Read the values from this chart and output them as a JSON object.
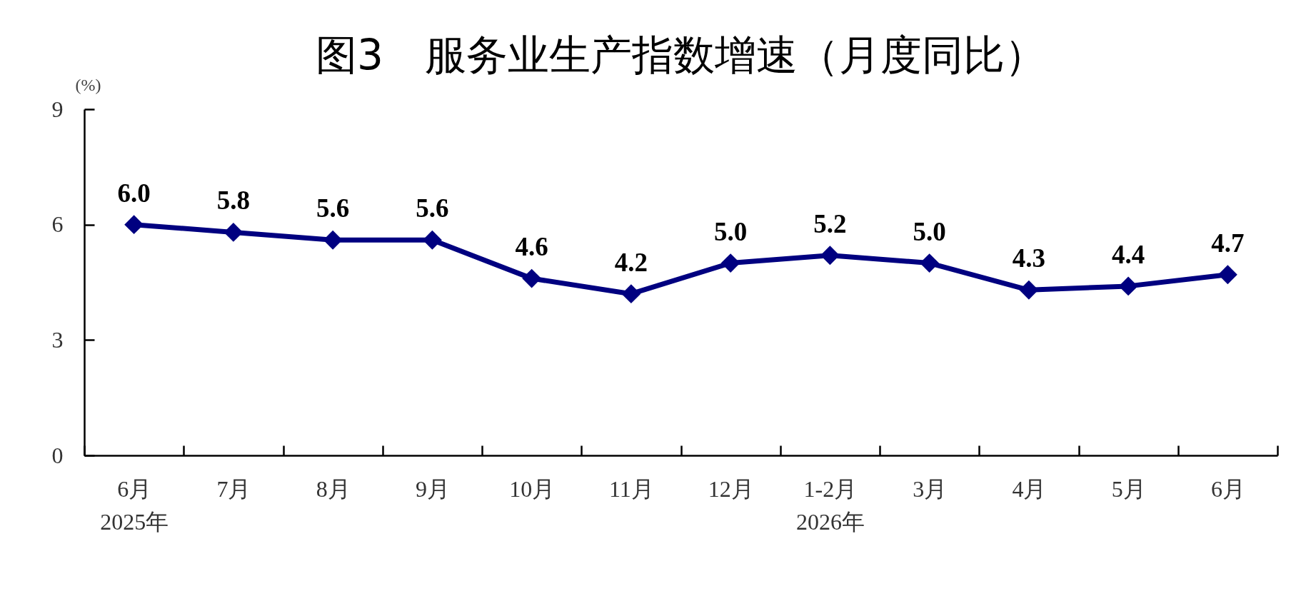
{
  "chart_data": {
    "type": "line",
    "title": "图3　服务业生产指数增速（月度同比）",
    "ylabel": "(%)",
    "categories": [
      "6月\n2025年",
      "7月",
      "8月",
      "9月",
      "10月",
      "11月",
      "12月",
      "1-2月\n2026年",
      "3月",
      "4月",
      "5月",
      "6月"
    ],
    "series": [
      {
        "color": "#000080",
        "values": [
          6.0,
          5.8,
          5.6,
          5.6,
          4.6,
          4.2,
          5.0,
          5.2,
          5.0,
          4.3,
          4.4,
          4.7
        ],
        "value_labels": [
          "6.0",
          "5.8",
          "5.6",
          "5.6",
          "4.6",
          "4.2",
          "5.0",
          "5.2",
          "5.0",
          "4.3",
          "4.4",
          "4.7"
        ]
      }
    ],
    "ylim": [
      0,
      9
    ],
    "yticks": [
      0,
      3,
      6,
      9
    ],
    "marker": "diamond",
    "line_style": "solid"
  }
}
